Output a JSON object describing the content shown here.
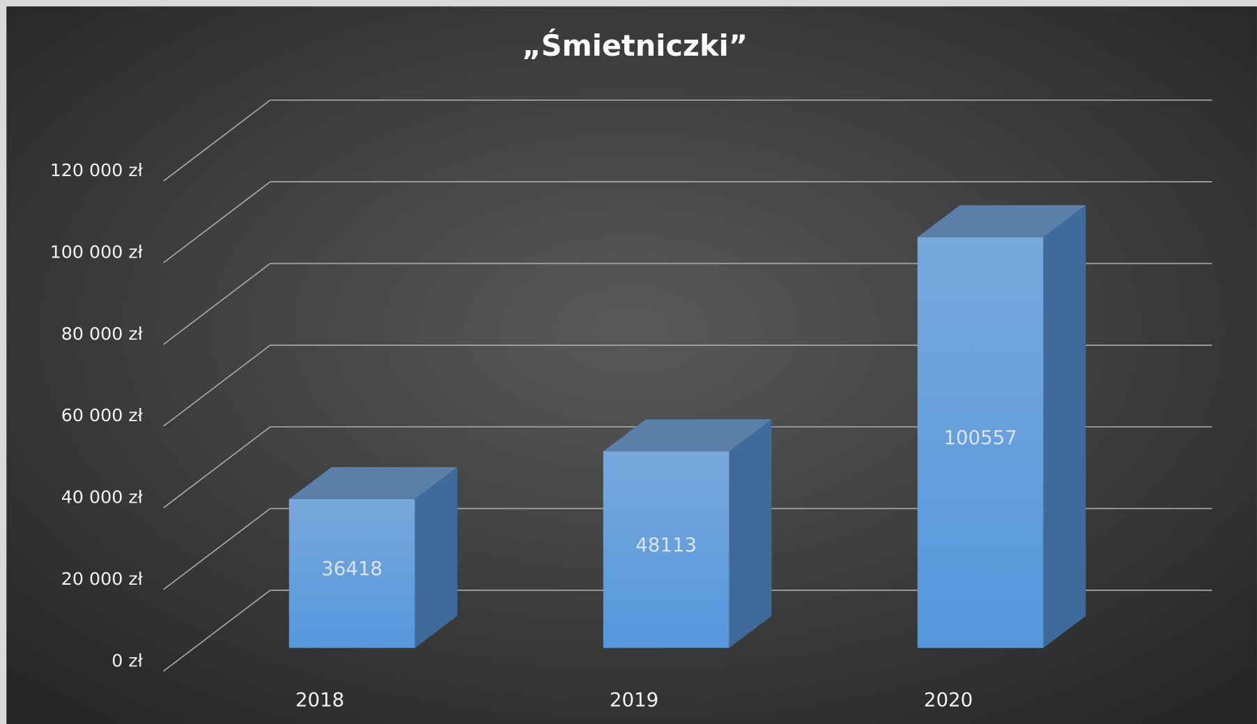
{
  "chart_data": {
    "type": "bar3d",
    "title": "„Śmietniczki”",
    "categories": [
      "2018",
      "2019",
      "2020"
    ],
    "values": [
      36418,
      48113,
      100557
    ],
    "color": "#5b9bd5",
    "ylim": [
      0,
      120000
    ],
    "yticks": [
      {
        "value": 0,
        "label": "0 zł"
      },
      {
        "value": 20000,
        "label": "20 000 zł"
      },
      {
        "value": 40000,
        "label": "40 000 zł"
      },
      {
        "value": 60000,
        "label": "60 000 zł"
      },
      {
        "value": 80000,
        "label": "80 000 zł"
      },
      {
        "value": 100000,
        "label": "100 000 zł"
      },
      {
        "value": 120000,
        "label": "120 000 zł"
      }
    ],
    "grid": true
  }
}
